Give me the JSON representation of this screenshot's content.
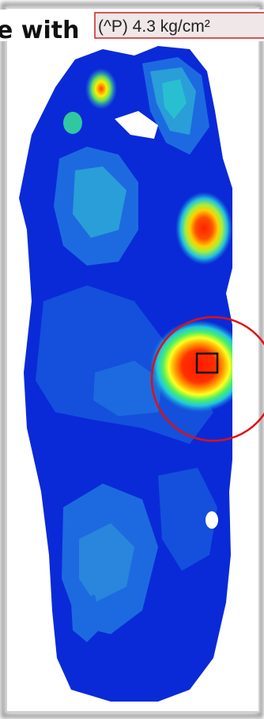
{
  "header": {
    "caption": "e with",
    "readout": "(^P) 4.3 kg/cm²"
  }
}
